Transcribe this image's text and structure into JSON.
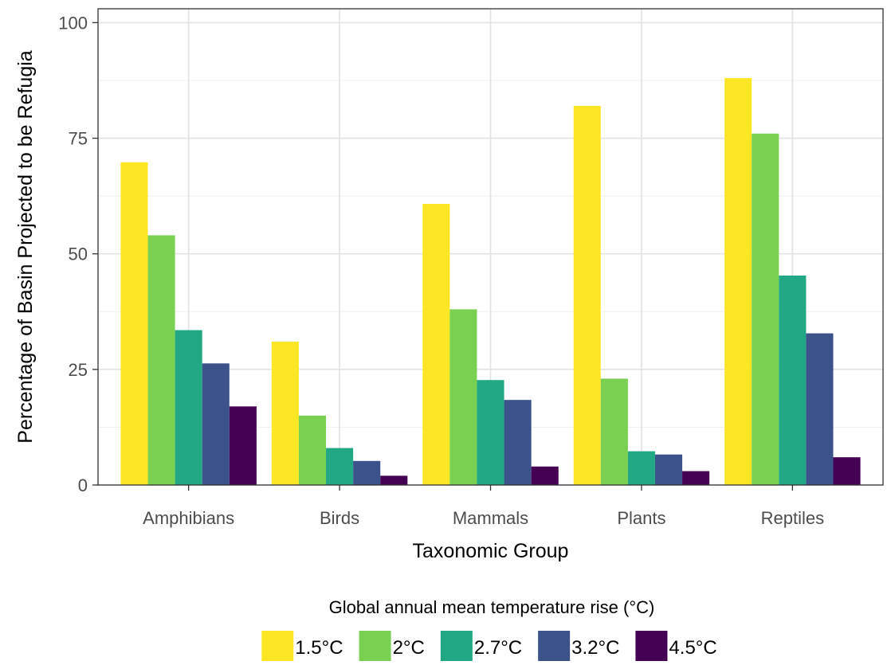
{
  "chart_data": {
    "type": "bar",
    "title": "",
    "xlabel": "Taxonomic Group",
    "ylabel": "Percentage of Basin Projected to be Refugia",
    "ylim": [
      0,
      103
    ],
    "yticks": [
      0,
      25,
      50,
      75,
      100
    ],
    "grid": true,
    "legend_position": "bottom",
    "legend_title": "Global annual mean temperature rise (°C)",
    "categories": [
      "Amphibians",
      "Birds",
      "Mammals",
      "Plants",
      "Reptiles"
    ],
    "series": [
      {
        "name": "1.5°C",
        "color": "#FDE725",
        "values": [
          69.8,
          31,
          60.8,
          82,
          88
        ]
      },
      {
        "name": "2°C",
        "color": "#7AD151",
        "values": [
          54,
          15,
          38,
          23,
          76
        ]
      },
      {
        "name": "2.7°C",
        "color": "#22A884",
        "values": [
          33.5,
          8,
          22.7,
          7.3,
          45.3
        ]
      },
      {
        "name": "3.2°C",
        "color": "#3B528B",
        "values": [
          26.3,
          5.2,
          18.4,
          6.6,
          32.8
        ]
      },
      {
        "name": "4.5°C",
        "color": "#440154",
        "values": [
          17,
          2,
          4,
          3,
          6
        ]
      }
    ]
  }
}
